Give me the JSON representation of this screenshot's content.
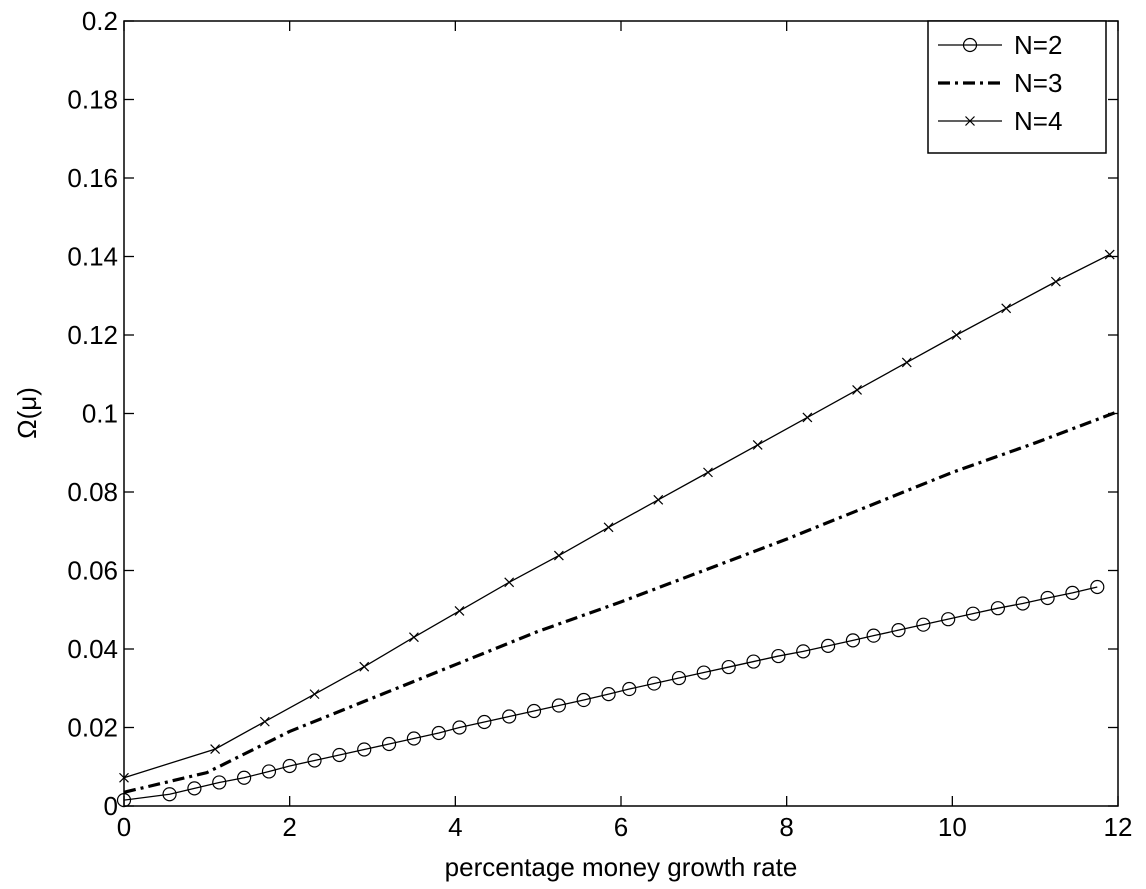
{
  "chart_data": {
    "type": "line",
    "xlabel": "percentage money growth rate",
    "ylabel": "Ω(μ)",
    "xlim": [
      0,
      12
    ],
    "ylim": [
      0,
      0.2
    ],
    "xticks": [
      0,
      2,
      4,
      6,
      8,
      10,
      12
    ],
    "xtick_labels": [
      "0",
      "2",
      "4",
      "6",
      "8",
      "10",
      "12"
    ],
    "yticks": [
      0,
      0.02,
      0.04,
      0.06,
      0.08,
      0.1,
      0.12,
      0.14,
      0.16,
      0.18,
      0.2
    ],
    "ytick_labels": [
      "0",
      "0.02",
      "0.04",
      "0.06",
      "0.08",
      "0.1",
      "0.12",
      "0.14",
      "0.16",
      "0.18",
      "0.2"
    ],
    "grid": false,
    "legend_position": "top-right",
    "series": [
      {
        "name": "N=2",
        "marker": "circle",
        "line": "solid",
        "x": [
          0,
          0.55,
          0.85,
          1.15,
          1.45,
          1.75,
          2.0,
          2.3,
          2.6,
          2.9,
          3.2,
          3.5,
          3.8,
          4.05,
          4.35,
          4.65,
          4.95,
          5.25,
          5.55,
          5.85,
          6.1,
          6.4,
          6.7,
          7.0,
          7.3,
          7.6,
          7.9,
          8.2,
          8.5,
          8.8,
          9.05,
          9.35,
          9.65,
          9.95,
          10.25,
          10.55,
          10.85,
          11.15,
          11.45,
          11.75
        ],
        "y": [
          0.0015,
          0.003,
          0.0045,
          0.006,
          0.0072,
          0.0088,
          0.0102,
          0.0116,
          0.013,
          0.0144,
          0.0158,
          0.0172,
          0.0186,
          0.02,
          0.0214,
          0.0228,
          0.0242,
          0.0256,
          0.027,
          0.0285,
          0.0298,
          0.0312,
          0.0326,
          0.034,
          0.0354,
          0.0368,
          0.0382,
          0.0394,
          0.0408,
          0.0422,
          0.0434,
          0.0448,
          0.0462,
          0.0476,
          0.049,
          0.0504,
          0.0516,
          0.053,
          0.0543,
          0.0558
        ]
      },
      {
        "name": "N=3",
        "marker": "none",
        "line": "dashdot",
        "x": [
          0,
          1.0,
          2.0,
          3.0,
          4.0,
          5.0,
          6.0,
          7.0,
          8.0,
          9.0,
          10.0,
          11.0,
          12.0
        ],
        "y": [
          0.0035,
          0.0085,
          0.019,
          0.0275,
          0.036,
          0.0445,
          0.052,
          0.06,
          0.068,
          0.0765,
          0.085,
          0.0925,
          0.1005
        ]
      },
      {
        "name": "N=4",
        "marker": "x",
        "line": "solid",
        "x": [
          0,
          1.1,
          1.7,
          2.3,
          2.9,
          3.5,
          4.05,
          4.65,
          5.25,
          5.85,
          6.45,
          7.05,
          7.65,
          8.25,
          8.85,
          9.45,
          10.05,
          10.65,
          11.25,
          11.9
        ],
        "y": [
          0.0072,
          0.0145,
          0.0215,
          0.0285,
          0.0355,
          0.043,
          0.0497,
          0.057,
          0.0638,
          0.071,
          0.078,
          0.085,
          0.092,
          0.099,
          0.106,
          0.113,
          0.12,
          0.1268,
          0.1336,
          0.1405
        ]
      }
    ]
  }
}
